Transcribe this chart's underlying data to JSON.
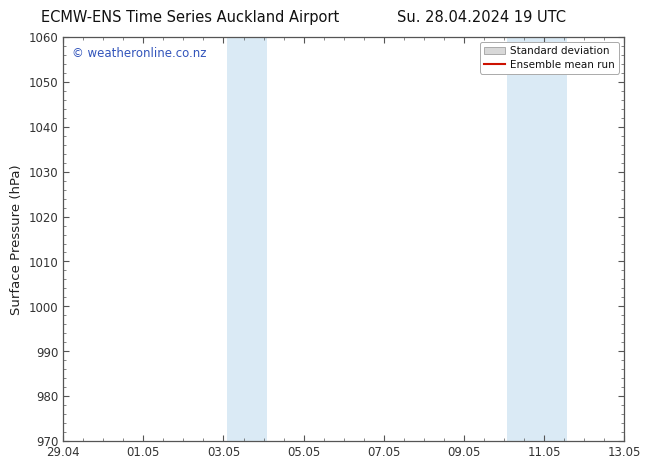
{
  "title_left": "ECMW-ENS Time Series Auckland Airport",
  "title_right": "Su. 28.04.2024 19 UTC",
  "ylabel": "Surface Pressure (hPa)",
  "ylim": [
    970,
    1060
  ],
  "yticks": [
    970,
    980,
    990,
    1000,
    1010,
    1020,
    1030,
    1040,
    1050,
    1060
  ],
  "xtick_positions": [
    0,
    2,
    4,
    6,
    8,
    10,
    12,
    14
  ],
  "xtick_labels": [
    "29.04",
    "01.05",
    "03.05",
    "05.05",
    "07.05",
    "09.05",
    "11.05",
    "13.05"
  ],
  "xlim": [
    0,
    14
  ],
  "background_color": "#ffffff",
  "plot_bg_color": "#ffffff",
  "shaded_bands": [
    {
      "xstart": 4.08,
      "xend": 5.08,
      "color": "#daeaf5"
    },
    {
      "xstart": 11.08,
      "xend": 12.58,
      "color": "#daeaf5"
    }
  ],
  "watermark_text": "© weatheronline.co.nz",
  "watermark_color": "#3355bb",
  "legend_sd_facecolor": "#d8d8d8",
  "legend_sd_edgecolor": "#aaaaaa",
  "legend_mean_color": "#cc1100",
  "title_fontsize": 10.5,
  "tick_fontsize": 8.5,
  "ylabel_fontsize": 9.5,
  "watermark_fontsize": 8.5,
  "legend_fontsize": 7.5,
  "spine_color": "#555555",
  "tick_color": "#333333",
  "minor_tick_color": "#555555"
}
